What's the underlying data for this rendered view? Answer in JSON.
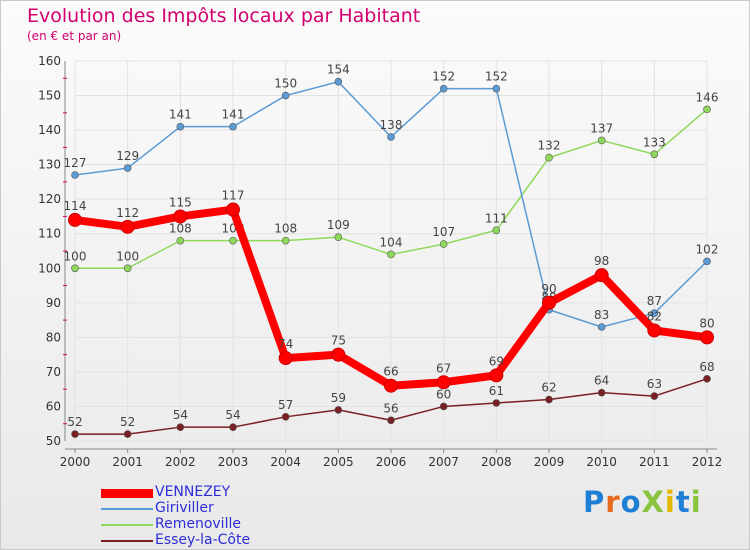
{
  "header": {
    "title": "Evolution des Impôts locaux par Habitant",
    "subtitle": "(en € et par an)"
  },
  "logo": {
    "text": "ProXiti"
  },
  "colors": {
    "title": "#d2006e",
    "legend_text": "#2d2dd8",
    "axis_text": "#333333",
    "grid": "#e2e2e2"
  },
  "chart_data": {
    "type": "line",
    "title": "Evolution des Impôts locaux par Habitant",
    "subtitle": "(en € et par an)",
    "xlabel": "",
    "ylabel": "",
    "ylim": [
      50,
      160
    ],
    "yticks": [
      50,
      60,
      70,
      80,
      90,
      100,
      110,
      120,
      130,
      140,
      150,
      160
    ],
    "x": [
      "2000",
      "2001",
      "2002",
      "2003",
      "2004",
      "2005",
      "2006",
      "2007",
      "2008",
      "2009",
      "2010",
      "2011",
      "2012"
    ],
    "grid": true,
    "legend_position": "bottom-left",
    "series": [
      {
        "name": "Essey-la-Côte",
        "color": "#7a1f23",
        "values": [
          52,
          52,
          54,
          54,
          57,
          59,
          56,
          60,
          61,
          62,
          64,
          63,
          68
        ]
      },
      {
        "name": "Remenoville",
        "color": "#8fd95a",
        "values": [
          100,
          100,
          108,
          108,
          108,
          109,
          104,
          107,
          111,
          132,
          137,
          133,
          146
        ]
      },
      {
        "name": "Giriviller",
        "color": "#5b9bd5",
        "values": [
          127,
          129,
          141,
          141,
          150,
          154,
          138,
          152,
          152,
          88,
          83,
          87,
          102
        ]
      },
      {
        "name": "VENNEZEY",
        "color": "#ff0000",
        "values": [
          114,
          112,
          115,
          117,
          74,
          75,
          66,
          67,
          69,
          90,
          98,
          82,
          80
        ]
      }
    ],
    "legend_order": [
      "VENNEZEY",
      "Giriviller",
      "Remenoville",
      "Essey-la-Côte"
    ]
  }
}
